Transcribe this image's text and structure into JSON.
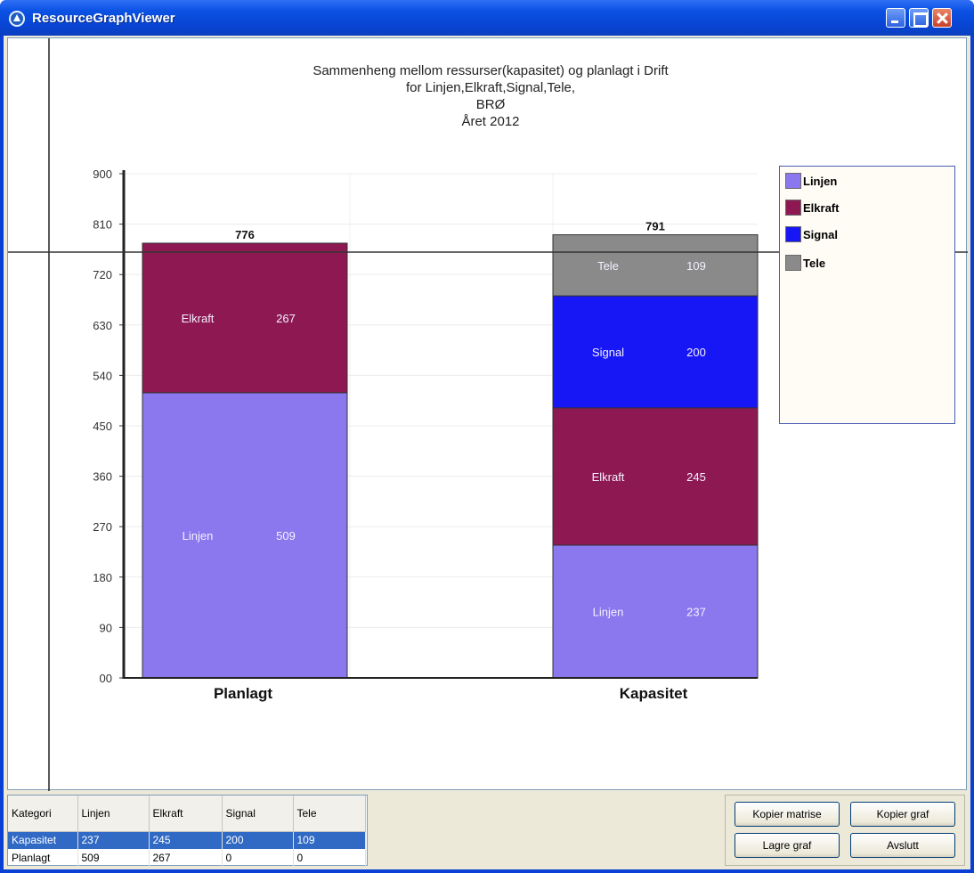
{
  "window": {
    "title": "ResourceGraphViewer"
  },
  "chart_data": {
    "type": "bar",
    "stacked": true,
    "title": [
      "Sammenheng mellom ressurser(kapasitet) og planlagt i Drift",
      "for Linjen,Elkraft,Signal,Tele,",
      "BRØ",
      "Året 2012"
    ],
    "categories": [
      "Planlagt",
      "Kapasitet"
    ],
    "series": [
      {
        "name": "Linjen",
        "color": "#8b78ee",
        "values": [
          509,
          237
        ]
      },
      {
        "name": "Elkraft",
        "color": "#8e1952",
        "values": [
          267,
          245
        ]
      },
      {
        "name": "Signal",
        "color": "#1717f5",
        "values": [
          0,
          200
        ]
      },
      {
        "name": "Tele",
        "color": "#8a8a8a",
        "values": [
          0,
          109
        ]
      }
    ],
    "totals": [
      "776",
      "791"
    ],
    "yticks": [
      "00",
      "90",
      "180",
      "270",
      "360",
      "450",
      "540",
      "630",
      "720",
      "810",
      "900"
    ],
    "ylim": [
      0,
      900
    ],
    "reference_line": 760,
    "legend": "top-right",
    "grid": true
  },
  "legend": {
    "items": [
      {
        "label": "Linjen",
        "color": "#8b78ee"
      },
      {
        "label": "Elkraft",
        "color": "#8e1952"
      },
      {
        "label": "Signal",
        "color": "#1717f5"
      },
      {
        "label": "Tele",
        "color": "#8a8a8a"
      }
    ]
  },
  "matrix": {
    "headers": [
      "Kategori",
      "Linjen",
      "Elkraft",
      "Signal",
      "Tele"
    ],
    "rows": [
      [
        "Kapasitet",
        "237",
        "245",
        "200",
        "109"
      ],
      [
        "Planlagt",
        "509",
        "267",
        "0",
        "0"
      ]
    ]
  },
  "buttons": {
    "copy_matrix": "Kopier matrise",
    "copy_graph": "Kopier graf",
    "save_graph": "Lagre graf",
    "exit": "Avslutt"
  }
}
